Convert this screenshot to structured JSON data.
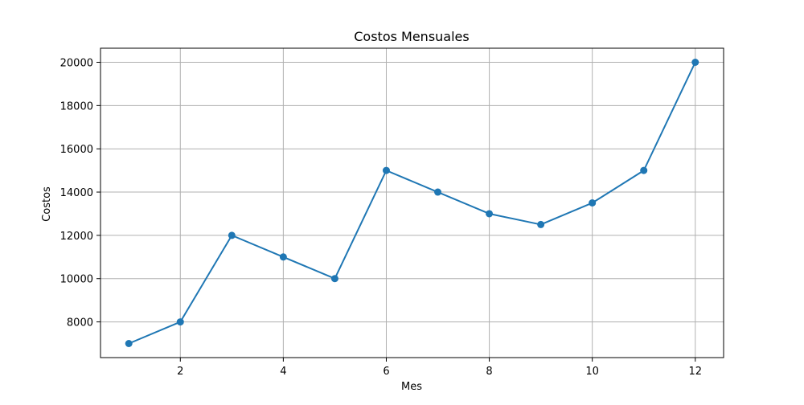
{
  "chart_data": {
    "type": "line",
    "title": "Costos Mensuales",
    "xlabel": "Mes",
    "ylabel": "Costos",
    "x": [
      1,
      2,
      3,
      4,
      5,
      6,
      7,
      8,
      9,
      10,
      11,
      12
    ],
    "series": [
      {
        "values": [
          7000,
          8000,
          12000,
          11000,
          10000,
          15000,
          14000,
          13000,
          12500,
          13500,
          15000,
          20000
        ]
      }
    ],
    "xlim": [
      0.45,
      12.55
    ],
    "ylim": [
      6350,
      20650
    ],
    "xticks": [
      "2",
      "4",
      "6",
      "8",
      "10",
      "12"
    ],
    "yticks": [
      "8000",
      "10000",
      "12000",
      "14000",
      "16000",
      "18000",
      "20000"
    ],
    "grid": true,
    "line_color": "#1f77b4",
    "grid_color": "#b0b0b0",
    "marker": "circle"
  }
}
